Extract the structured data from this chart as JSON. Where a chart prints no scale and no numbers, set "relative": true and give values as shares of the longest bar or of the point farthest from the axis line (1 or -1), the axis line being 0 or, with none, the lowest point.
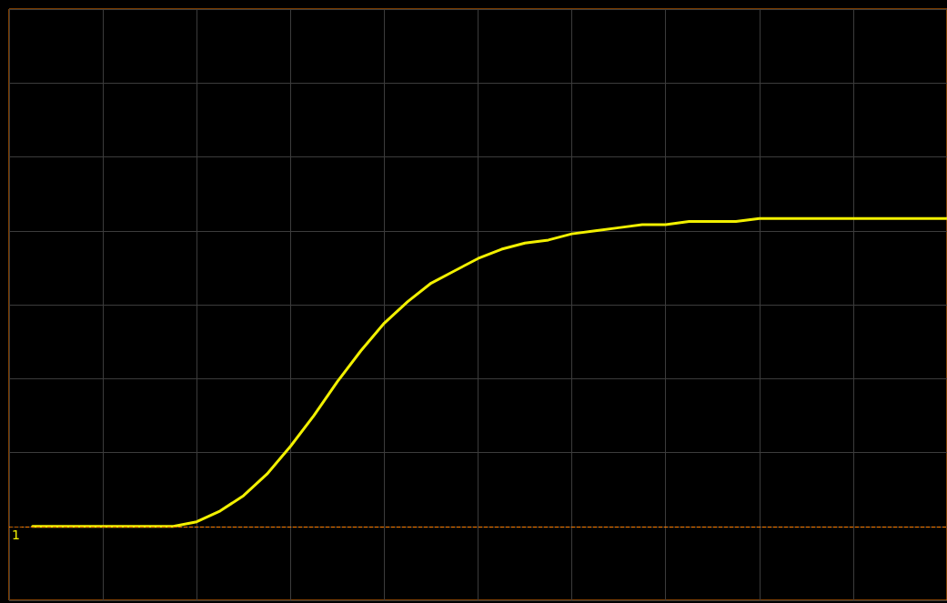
{
  "chart_data": {
    "type": "line",
    "relative": true,
    "grid": true,
    "marker": "none",
    "line_style": "solid",
    "color": "#f2f000",
    "categories": [
      null,
      null,
      null,
      null,
      null,
      null,
      null,
      null,
      null,
      null,
      null,
      null,
      null,
      null,
      null,
      null,
      null,
      null,
      null,
      null,
      null,
      null,
      null,
      null,
      null,
      null,
      null,
      null,
      null,
      null,
      null,
      null,
      null,
      null,
      null,
      null,
      null,
      null,
      null,
      null,
      null
    ],
    "values": [
      null,
      0,
      0,
      0,
      0,
      0,
      0,
      0,
      0.015,
      0.05,
      0.1,
      0.17,
      0.26,
      0.36,
      0.47,
      0.57,
      0.66,
      0.73,
      0.79,
      0.83,
      0.87,
      0.9,
      0.92,
      0.93,
      0.95,
      0.96,
      0.97,
      0.98,
      0.98,
      0.99,
      0.99,
      0.99,
      1,
      1,
      1,
      1,
      1,
      1,
      1,
      1,
      1
    ],
    "annotations": [
      {
        "text": "1",
        "y": 0
      }
    ],
    "ref_lines": [
      {
        "axis": "y",
        "value": 0,
        "color": "#ff8000",
        "line_style": "dashed"
      }
    ]
  }
}
